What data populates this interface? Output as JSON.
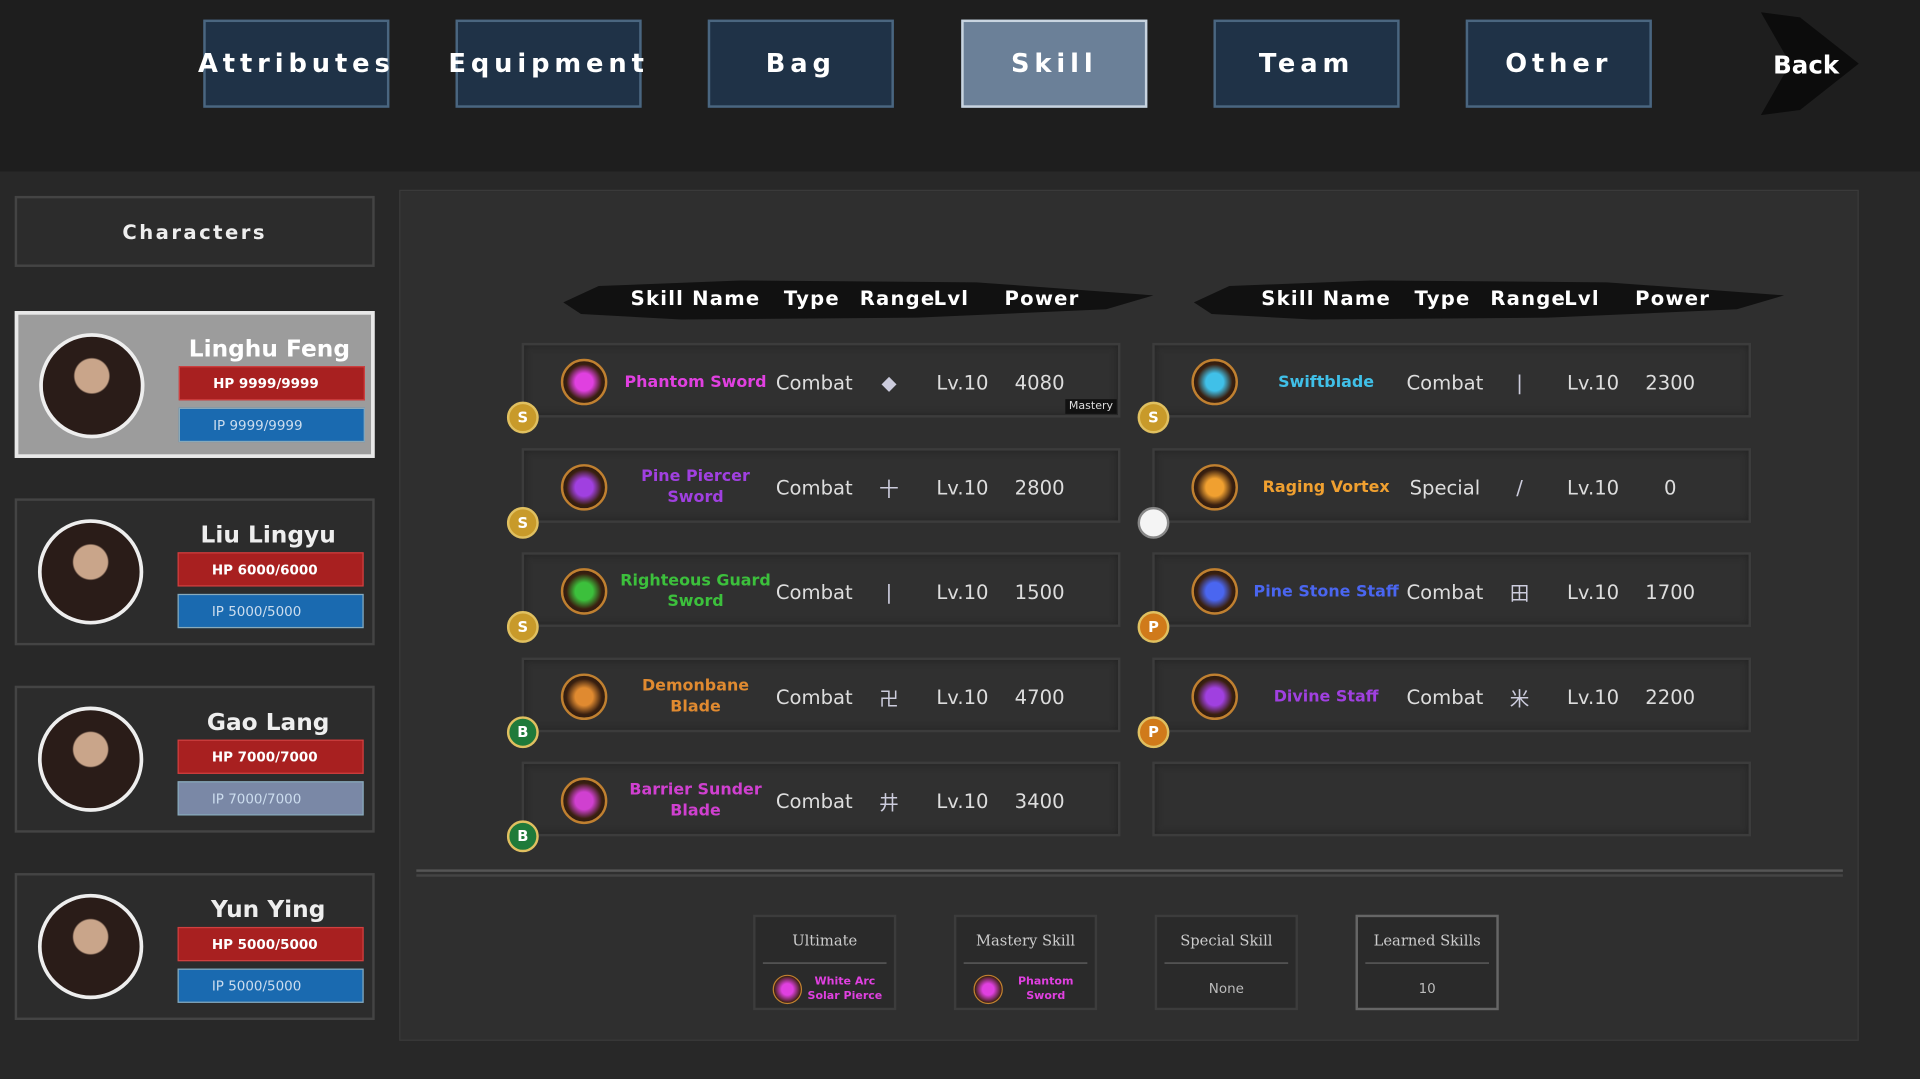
{
  "tabs": [
    "Attributes",
    "Equipment",
    "Bag",
    "Skill",
    "Team",
    "Other"
  ],
  "active_tab": 3,
  "back": "Back",
  "characters": {
    "title": "Characters",
    "selected": 0,
    "list": [
      {
        "name": "Linghu Feng",
        "hp": "HP 9999/9999",
        "ip": "IP 9999/9999",
        "ip_color": "#1a6ab0"
      },
      {
        "name": "Liu Lingyu",
        "hp": "HP 6000/6000",
        "ip": "IP 5000/5000",
        "ip_color": "#1a6ab0"
      },
      {
        "name": "Gao Lang",
        "hp": "HP 7000/7000",
        "ip": "IP 7000/7000",
        "ip_color": "#7a88a6"
      },
      {
        "name": "Yun Ying",
        "hp": "HP 5000/5000",
        "ip": "IP 5000/5000",
        "ip_color": "#1a6ab0"
      }
    ]
  },
  "skills": {
    "headers": [
      "Skill Name",
      "Type",
      "Range",
      "Lvl",
      "Power"
    ],
    "left": [
      {
        "name": "Phantom Sword",
        "color": "#e040e0",
        "type": "Combat",
        "range": "◆",
        "level": "Lv.10",
        "power": 4080,
        "badge": "S",
        "tag": "Mastery"
      },
      {
        "name": "Pine Piercer Sword",
        "color": "#a040e0",
        "type": "Combat",
        "range": "十",
        "level": "Lv.10",
        "power": 2800,
        "badge": "S"
      },
      {
        "name": "Righteous Guard Sword",
        "color": "#3cc03c",
        "type": "Combat",
        "range": "|",
        "level": "Lv.10",
        "power": 1500,
        "badge": "S"
      },
      {
        "name": "Demonbane Blade",
        "color": "#e08a30",
        "type": "Combat",
        "range": "卍",
        "level": "Lv.10",
        "power": 4700,
        "badge": "B"
      },
      {
        "name": "Barrier Sunder Blade",
        "color": "#d040d0",
        "type": "Combat",
        "range": "井",
        "level": "Lv.10",
        "power": 3400,
        "badge": "B"
      }
    ],
    "right": [
      {
        "name": "Swiftblade",
        "color": "#40c0e8",
        "type": "Combat",
        "range": "|",
        "level": "Lv.10",
        "power": 2300,
        "badge": "S"
      },
      {
        "name": "Raging Vortex",
        "color": "#f0a030",
        "type": "Special",
        "range": "/",
        "level": "Lv.10",
        "power": 0
      },
      {
        "name": "Pine Stone Staff",
        "color": "#4a66f0",
        "type": "Combat",
        "range": "田",
        "level": "Lv.10",
        "power": 1700,
        "badge": "P"
      },
      {
        "name": "Divine Staff",
        "color": "#a040e0",
        "type": "Combat",
        "range": "米",
        "level": "Lv.10",
        "power": 2200,
        "badge": "P"
      }
    ]
  },
  "summary": [
    {
      "title": "Ultimate",
      "value": "White Arc Solar Pierce",
      "color": "#e040e0"
    },
    {
      "title": "Mastery Skill",
      "value": "Phantom Sword",
      "color": "#e040e0"
    },
    {
      "title": "Special Skill",
      "value": "None",
      "color": "#bbbbbb"
    },
    {
      "title": "Learned Skills",
      "value": "10",
      "color": "#bbbbbb"
    }
  ]
}
